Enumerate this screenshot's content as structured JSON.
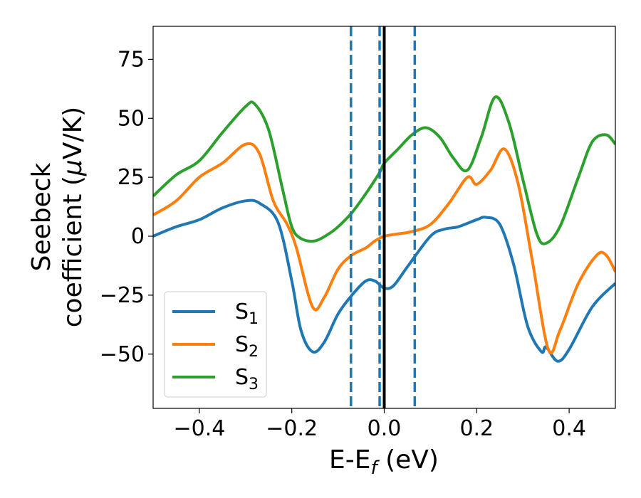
{
  "chart_data": {
    "type": "line",
    "xlabel": "E-E",
    "xlabel_sub": "f",
    "xlabel_unit": " (eV)",
    "ylabel_line1": "Seebeck",
    "ylabel_line2_pre": "coefficient  (",
    "ylabel_mu": "μ",
    "ylabel_line2_post": "V/K)",
    "xlim": [
      -0.5,
      0.5
    ],
    "ylim": [
      -73,
      89
    ],
    "xticks": [
      -0.4,
      -0.2,
      0.0,
      0.2,
      0.4
    ],
    "xtick_labels": [
      "−0.4",
      "−0.2",
      "0.0",
      "0.2",
      "0.4"
    ],
    "yticks": [
      75,
      50,
      25,
      0,
      -25,
      -50
    ],
    "ytick_labels": [
      "75",
      "50",
      "25",
      "0",
      "−25",
      "−50"
    ],
    "grid": false,
    "legend_position": "lower-left",
    "vlines": [
      {
        "x": -0.072,
        "style": "dashed",
        "color": "#1f77b4"
      },
      {
        "x": -0.01,
        "style": "dashed",
        "color": "#1f77b4"
      },
      {
        "x": 0.066,
        "style": "dashed",
        "color": "#1f77b4"
      },
      {
        "x": 0.0,
        "style": "solid",
        "color": "#000000"
      }
    ],
    "series": [
      {
        "name": "S",
        "sub": "1",
        "color": "#1f77b4",
        "x": [
          -0.5,
          -0.45,
          -0.4,
          -0.35,
          -0.3,
          -0.27,
          -0.23,
          -0.2,
          -0.18,
          -0.155,
          -0.13,
          -0.1,
          -0.07,
          -0.04,
          -0.02,
          0.0,
          0.02,
          0.05,
          0.1,
          0.13,
          0.16,
          0.2,
          0.22,
          0.25,
          0.28,
          0.31,
          0.34,
          0.35,
          0.375,
          0.4,
          0.45,
          0.5
        ],
        "y": [
          0,
          4,
          7,
          12,
          15,
          14,
          6,
          -19,
          -40,
          -49,
          -45,
          -33,
          -25,
          -19,
          -19,
          -22,
          -21,
          -13,
          0,
          3,
          4,
          7,
          8,
          5,
          -12,
          -38,
          -49,
          -47,
          -53,
          -48,
          -30,
          -20
        ]
      },
      {
        "name": "S",
        "sub": "2",
        "color": "#ff7f0e",
        "x": [
          -0.5,
          -0.45,
          -0.4,
          -0.35,
          -0.3,
          -0.27,
          -0.24,
          -0.21,
          -0.19,
          -0.155,
          -0.13,
          -0.1,
          -0.07,
          -0.04,
          -0.02,
          0.0,
          0.03,
          0.06,
          0.1,
          0.14,
          0.18,
          0.2,
          0.23,
          0.26,
          0.29,
          0.32,
          0.355,
          0.38,
          0.42,
          0.46,
          0.48,
          0.5
        ],
        "y": [
          9,
          15,
          25,
          31,
          39,
          35,
          15,
          5,
          -5,
          -30,
          -26,
          -14,
          -8,
          -5,
          -2,
          0,
          1,
          2,
          5,
          14,
          25,
          22,
          28,
          37,
          22,
          -10,
          -48,
          -40,
          -20,
          -8,
          -8,
          -15
        ]
      },
      {
        "name": "S",
        "sub": "3",
        "color": "#2ca02c",
        "x": [
          -0.5,
          -0.45,
          -0.4,
          -0.35,
          -0.3,
          -0.28,
          -0.25,
          -0.22,
          -0.2,
          -0.18,
          -0.15,
          -0.12,
          -0.1,
          -0.07,
          -0.04,
          -0.01,
          0.0,
          0.03,
          0.06,
          0.09,
          0.12,
          0.15,
          0.18,
          0.21,
          0.24,
          0.27,
          0.3,
          0.33,
          0.35,
          0.38,
          0.42,
          0.45,
          0.48,
          0.5
        ],
        "y": [
          17,
          26,
          32,
          44,
          55,
          56,
          45,
          20,
          4,
          -1,
          -2,
          1,
          4,
          10,
          18,
          27,
          31,
          37,
          43,
          46,
          42,
          33,
          28,
          42,
          59,
          48,
          24,
          1,
          -3,
          4,
          25,
          40,
          43,
          39
        ]
      }
    ]
  }
}
